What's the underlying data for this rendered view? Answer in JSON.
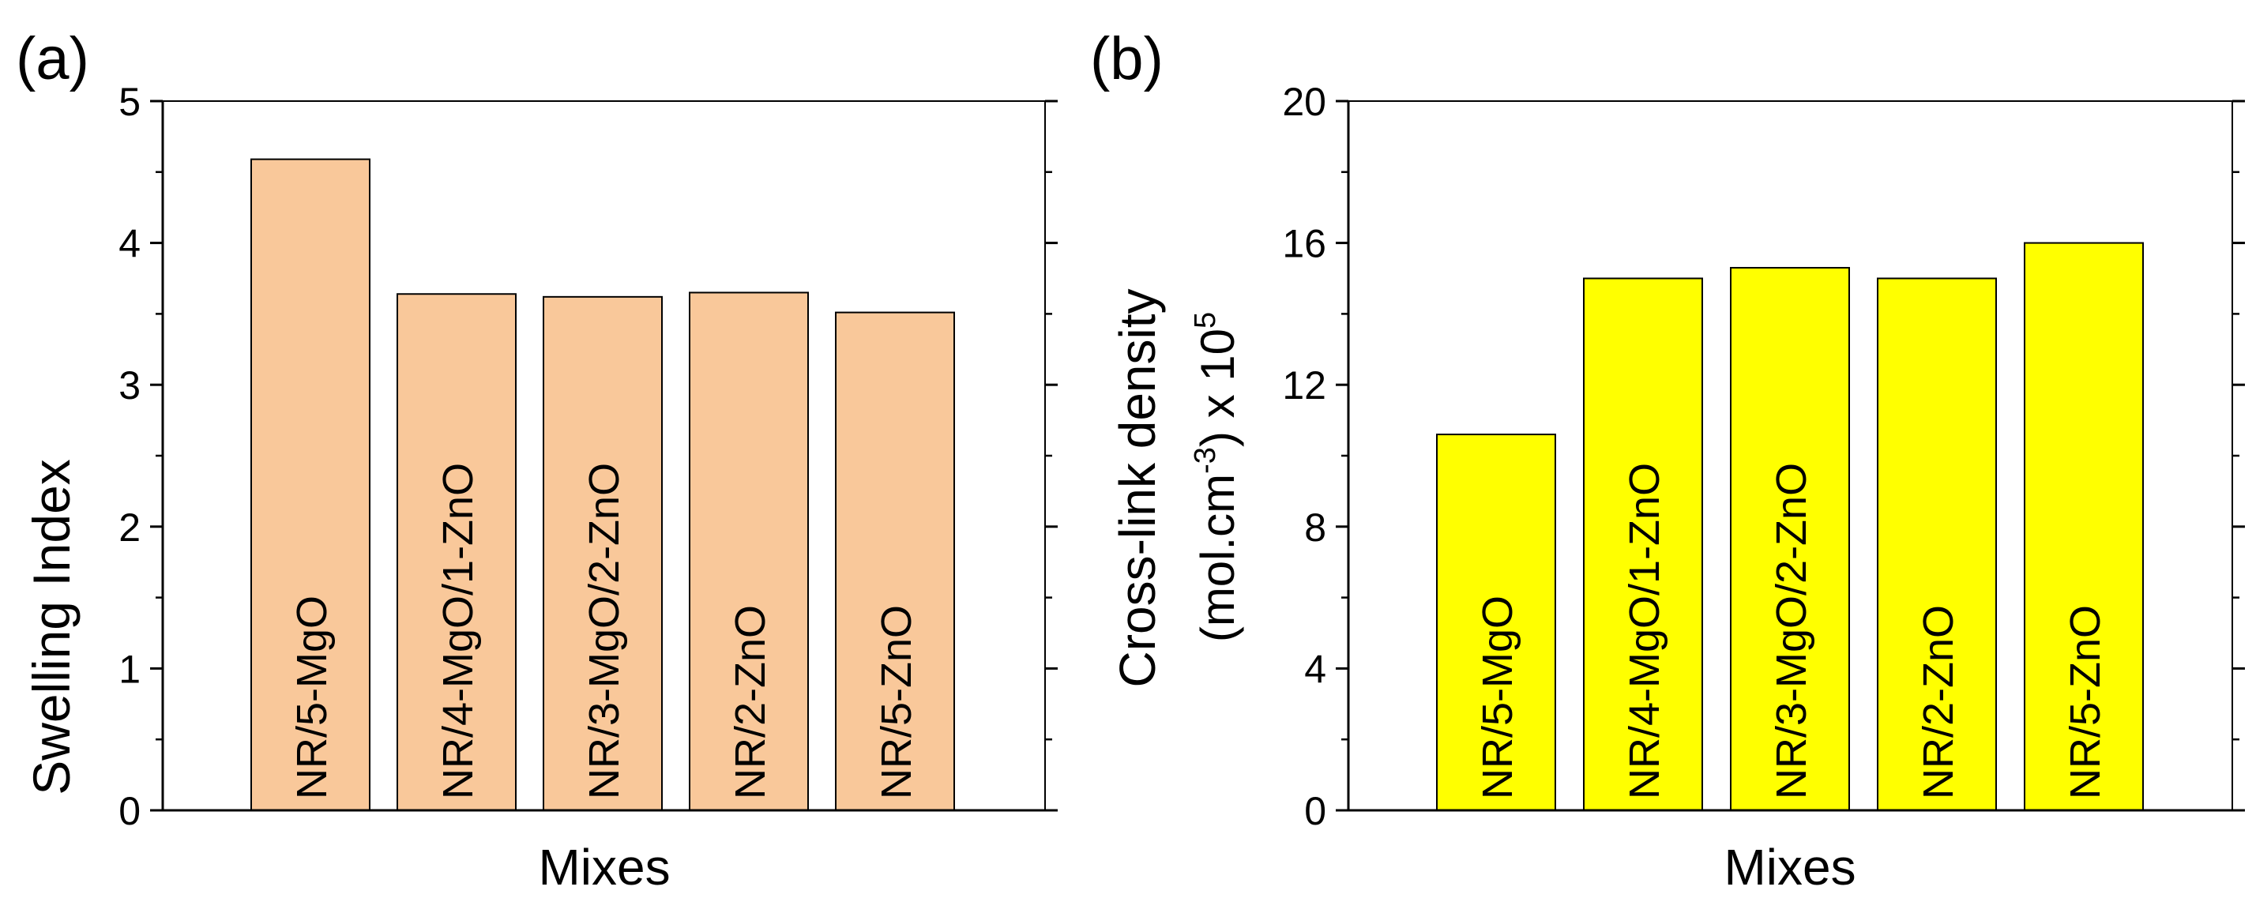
{
  "chart_data": [
    {
      "type": "bar",
      "panel_label": "(a)",
      "categories": [
        "NR/5-MgO",
        "NR/4-MgO/1-ZnO",
        "NR/3-MgO/2-ZnO",
        "NR/2-ZnO",
        "NR/5-ZnO"
      ],
      "values": [
        4.59,
        3.64,
        3.62,
        3.65,
        3.51
      ],
      "xlabel": "Mixes",
      "ylabel": "Swelling Index",
      "ylim": [
        0,
        5
      ],
      "yticks": [
        "0",
        "1",
        "2",
        "3",
        "4",
        "5"
      ],
      "bar_color": "#F9C89A"
    },
    {
      "type": "bar",
      "panel_label": "(b)",
      "categories": [
        "NR/5-MgO",
        "NR/4-MgO/1-ZnO",
        "NR/3-MgO/2-ZnO",
        "NR/2-ZnO",
        "NR/5-ZnO"
      ],
      "values": [
        10.6,
        15.0,
        15.3,
        15.0,
        16.0
      ],
      "xlabel": "Mixes",
      "ylabel_line1": "Cross-link density",
      "ylabel_line2_pre": "(mol.cm",
      "ylabel_line2_sup1": "-3",
      "ylabel_line2_mid": ") x 10",
      "ylabel_line2_sup2": "5",
      "ylim": [
        0,
        20
      ],
      "yticks": [
        "0",
        "4",
        "8",
        "12",
        "16",
        "20"
      ],
      "bar_color": "#FFFF00"
    }
  ]
}
